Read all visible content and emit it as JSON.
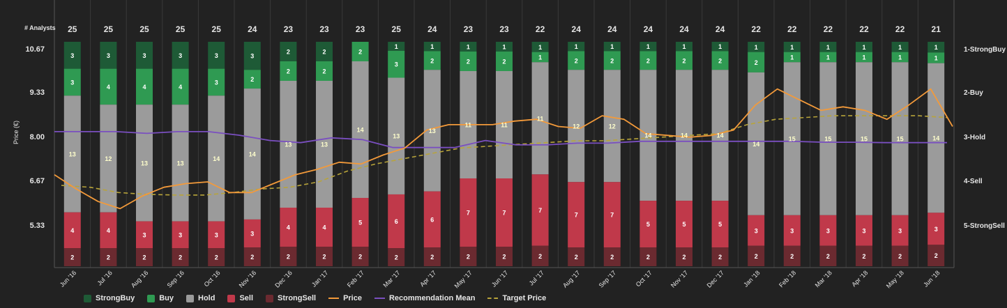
{
  "chart_data": {
    "type": "bar",
    "title": "",
    "analysts_label": "# Analysts",
    "ylabel": "Price (€)",
    "ylim": [
      4.35,
      10.67
    ],
    "left_ticks": [
      "10.67",
      "9.33",
      "8.00",
      "6.67",
      "5.33"
    ],
    "right_ticks": [
      "1-StrongBuy",
      "2-Buy",
      "3-Hold",
      "4-Sell",
      "5-StrongSell"
    ],
    "categories": [
      "Jun '16",
      "Jul '16",
      "Aug '16",
      "Sep '16",
      "Oct '16",
      "Nov '16",
      "Dec '16",
      "Jan '17",
      "Feb '17",
      "Mar '17",
      "Apr '17",
      "May '17",
      "Jun '17",
      "Jul '17",
      "Aug '17",
      "Sep '17",
      "Oct '17",
      "Nov '17",
      "Dec '17",
      "Jan '18",
      "Feb '18",
      "Mar '18",
      "Apr '18",
      "May '18",
      "Jun '18"
    ],
    "analysts": [
      25,
      25,
      25,
      25,
      25,
      24,
      23,
      23,
      23,
      25,
      24,
      23,
      23,
      22,
      24,
      24,
      24,
      24,
      24,
      22,
      22,
      22,
      22,
      22,
      21
    ],
    "series": [
      {
        "name": "StrongBuy",
        "color": "#1e5a36",
        "values": [
          3,
          3,
          3,
          3,
          3,
          3,
          2,
          2,
          0,
          1,
          1,
          1,
          1,
          1,
          1,
          1,
          1,
          1,
          1,
          1,
          1,
          1,
          1,
          1,
          1
        ]
      },
      {
        "name": "Buy",
        "color": "#2f9a52",
        "values": [
          3,
          4,
          4,
          4,
          3,
          2,
          2,
          2,
          2,
          3,
          2,
          2,
          2,
          1,
          2,
          2,
          2,
          2,
          2,
          2,
          1,
          1,
          1,
          1,
          1
        ]
      },
      {
        "name": "Hold",
        "color": "#9b9b9b",
        "values": [
          13,
          12,
          13,
          13,
          14,
          14,
          13,
          13,
          14,
          13,
          13,
          11,
          11,
          11,
          12,
          12,
          14,
          14,
          14,
          14,
          15,
          15,
          15,
          15,
          14
        ]
      },
      {
        "name": "Sell",
        "color": "#c0394a",
        "values": [
          4,
          4,
          3,
          3,
          3,
          3,
          4,
          4,
          5,
          6,
          6,
          7,
          7,
          7,
          7,
          7,
          5,
          5,
          5,
          3,
          3,
          3,
          3,
          3,
          3
        ]
      },
      {
        "name": "StrongSell",
        "color": "#6b2a30",
        "values": [
          2,
          2,
          2,
          2,
          2,
          2,
          2,
          2,
          2,
          2,
          2,
          2,
          2,
          2,
          2,
          2,
          2,
          2,
          2,
          2,
          2,
          2,
          2,
          2,
          2
        ]
      }
    ],
    "price": [
      6.95,
      6.55,
      6.2,
      6.0,
      6.35,
      6.6,
      6.7,
      6.75,
      6.45,
      6.45,
      6.7,
      6.95,
      7.1,
      7.3,
      7.25,
      7.5,
      7.7,
      8.2,
      8.35,
      8.35,
      8.35,
      8.45,
      8.5,
      8.3,
      8.25,
      8.6,
      8.5,
      8.1,
      8.05,
      8.0,
      8.05,
      8.2,
      8.9,
      9.35,
      9.05,
      8.75,
      8.85,
      8.75,
      8.5,
      8.9,
      9.35,
      8.3
    ],
    "target_price": [
      6.65,
      6.6,
      6.45,
      6.4,
      6.38,
      6.38,
      6.45,
      6.55,
      6.6,
      6.75,
      7.05,
      7.25,
      7.4,
      7.55,
      7.7,
      7.75,
      7.8,
      7.85,
      7.9,
      7.9,
      7.95,
      8.0,
      8.05,
      8.1,
      8.35,
      8.5,
      8.55,
      8.6,
      8.6,
      8.6,
      8.6,
      8.55
    ],
    "recommendation_mean": [
      2.88,
      2.88,
      2.88,
      2.92,
      2.88,
      2.88,
      2.96,
      3.08,
      3.13,
      3.02,
      3.06,
      3.24,
      3.24,
      3.24,
      3.08,
      3.18,
      3.18,
      3.14,
      3.14,
      3.1,
      3.1,
      3.1,
      3.1,
      3.1,
      3.1,
      3.12,
      3.12,
      3.13,
      3.13,
      3.13
    ],
    "legend": [
      "StrongBuy",
      "Buy",
      "Hold",
      "Sell",
      "StrongSell",
      "Price",
      "Recommendation Mean",
      "Target Price"
    ],
    "colors": {
      "price": "#f39a3a",
      "recommendation_mean": "#7a4fc0",
      "target_price": "#b8a43a",
      "background": "#222222",
      "text": "#e6e6e6"
    }
  }
}
